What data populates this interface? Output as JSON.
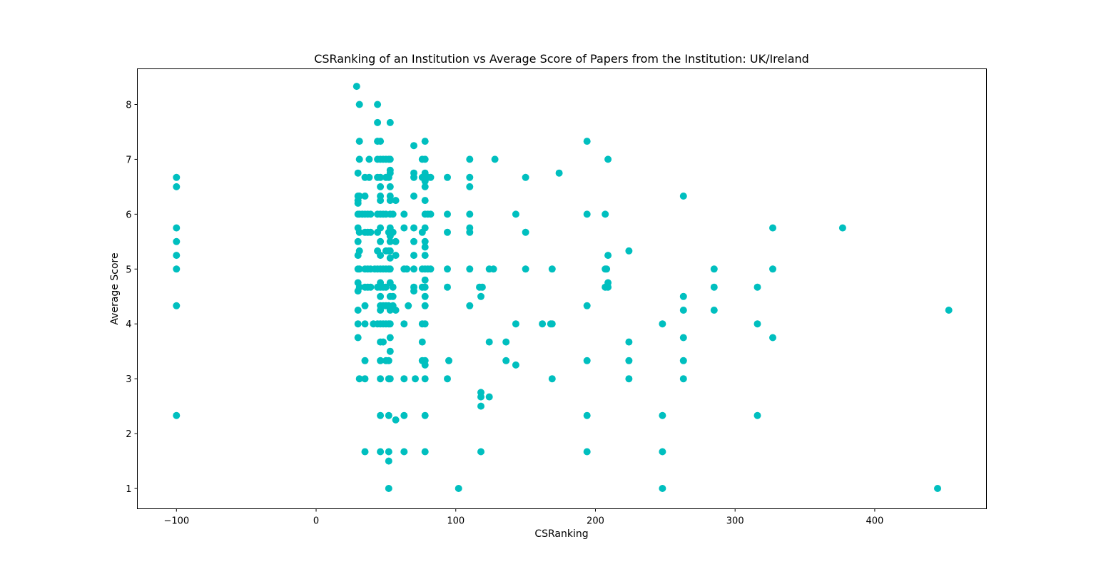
{
  "chart_data": {
    "type": "scatter",
    "title": "CSRanking of an Institution vs Average Score of Papers from the Institution: UK/Ireland",
    "xlabel": "CSRanking",
    "ylabel": "Average Score",
    "xlim": [
      -128,
      480
    ],
    "ylim": [
      0.63,
      8.65
    ],
    "xticks": [
      -100,
      0,
      100,
      200,
      300,
      400
    ],
    "xtick_labels": [
      "−100",
      "0",
      "100",
      "200",
      "300",
      "400"
    ],
    "yticks": [
      1,
      2,
      3,
      4,
      5,
      6,
      7,
      8
    ],
    "ytick_labels": [
      "1",
      "2",
      "3",
      "4",
      "5",
      "6",
      "7",
      "8"
    ],
    "grid": false,
    "marker_color": "#00bfbf",
    "points": [
      [
        -100,
        6.67
      ],
      [
        -100,
        6.5
      ],
      [
        -100,
        5.75
      ],
      [
        -100,
        5.5
      ],
      [
        -100,
        5.25
      ],
      [
        -100,
        5.0
      ],
      [
        -100,
        4.33
      ],
      [
        -100,
        2.33
      ],
      [
        29,
        8.33
      ],
      [
        30,
        6.75
      ],
      [
        30,
        6.33
      ],
      [
        30,
        6.25
      ],
      [
        30,
        6.2
      ],
      [
        30,
        6.0
      ],
      [
        30,
        5.75
      ],
      [
        30,
        5.5
      ],
      [
        30,
        5.25
      ],
      [
        30,
        5.0
      ],
      [
        30,
        4.75
      ],
      [
        30,
        4.6
      ],
      [
        30,
        4.25
      ],
      [
        30,
        4.0
      ],
      [
        30,
        3.75
      ],
      [
        31,
        8.0
      ],
      [
        31,
        7.33
      ],
      [
        31,
        7.0
      ],
      [
        31,
        6.33
      ],
      [
        31,
        6.0
      ],
      [
        31,
        5.67
      ],
      [
        31,
        5.33
      ],
      [
        31,
        5.0
      ],
      [
        31,
        4.67
      ],
      [
        31,
        3.0
      ],
      [
        33,
        6.0
      ],
      [
        35,
        6.67
      ],
      [
        35,
        6.33
      ],
      [
        35,
        6.0
      ],
      [
        35,
        5.67
      ],
      [
        35,
        5.0
      ],
      [
        35,
        4.67
      ],
      [
        35,
        4.33
      ],
      [
        35,
        4.0
      ],
      [
        35,
        3.33
      ],
      [
        35,
        3.0
      ],
      [
        35,
        1.67
      ],
      [
        37,
        6.0
      ],
      [
        37,
        5.67
      ],
      [
        37,
        5.0
      ],
      [
        37,
        4.67
      ],
      [
        38,
        7.0
      ],
      [
        38,
        6.67
      ],
      [
        39,
        6.0
      ],
      [
        39,
        5.67
      ],
      [
        39,
        5.0
      ],
      [
        39,
        4.67
      ],
      [
        41,
        4.0
      ],
      [
        42,
        5.0
      ],
      [
        44,
        8.0
      ],
      [
        44,
        7.67
      ],
      [
        44,
        7.33
      ],
      [
        44,
        7.0
      ],
      [
        44,
        6.67
      ],
      [
        44,
        6.0
      ],
      [
        44,
        5.67
      ],
      [
        44,
        5.33
      ],
      [
        44,
        5.0
      ],
      [
        44,
        4.67
      ],
      [
        44,
        4.0
      ],
      [
        46,
        7.33
      ],
      [
        46,
        7.0
      ],
      [
        46,
        6.67
      ],
      [
        46,
        6.5
      ],
      [
        46,
        6.33
      ],
      [
        46,
        6.25
      ],
      [
        46,
        6.0
      ],
      [
        46,
        5.75
      ],
      [
        46,
        5.5
      ],
      [
        46,
        5.25
      ],
      [
        46,
        5.0
      ],
      [
        46,
        4.75
      ],
      [
        46,
        4.67
      ],
      [
        46,
        4.5
      ],
      [
        46,
        4.33
      ],
      [
        46,
        4.25
      ],
      [
        46,
        4.0
      ],
      [
        46,
        3.67
      ],
      [
        46,
        3.33
      ],
      [
        46,
        3.0
      ],
      [
        46,
        2.33
      ],
      [
        46,
        1.67
      ],
      [
        48,
        7.0
      ],
      [
        48,
        6.0
      ],
      [
        48,
        5.0
      ],
      [
        48,
        4.67
      ],
      [
        48,
        4.33
      ],
      [
        48,
        4.0
      ],
      [
        48,
        3.67
      ],
      [
        50,
        7.0
      ],
      [
        50,
        6.67
      ],
      [
        50,
        6.0
      ],
      [
        50,
        5.33
      ],
      [
        50,
        5.0
      ],
      [
        50,
        4.67
      ],
      [
        50,
        4.33
      ],
      [
        50,
        4.0
      ],
      [
        50,
        3.33
      ],
      [
        52,
        7.0
      ],
      [
        52,
        6.67
      ],
      [
        52,
        5.67
      ],
      [
        52,
        5.33
      ],
      [
        52,
        5.0
      ],
      [
        52,
        4.33
      ],
      [
        52,
        4.0
      ],
      [
        52,
        3.33
      ],
      [
        52,
        3.0
      ],
      [
        52,
        2.33
      ],
      [
        52,
        1.67
      ],
      [
        52,
        1.5
      ],
      [
        52,
        1.0
      ],
      [
        53,
        7.67
      ],
      [
        53,
        7.0
      ],
      [
        53,
        6.8
      ],
      [
        53,
        6.75
      ],
      [
        53,
        6.5
      ],
      [
        53,
        6.33
      ],
      [
        53,
        6.25
      ],
      [
        53,
        6.0
      ],
      [
        53,
        5.75
      ],
      [
        53,
        5.67
      ],
      [
        53,
        5.6
      ],
      [
        53,
        5.5
      ],
      [
        53,
        5.33
      ],
      [
        53,
        5.2
      ],
      [
        53,
        5.0
      ],
      [
        53,
        4.75
      ],
      [
        53,
        4.5
      ],
      [
        53,
        4.25
      ],
      [
        53,
        4.0
      ],
      [
        53,
        3.75
      ],
      [
        53,
        3.5
      ],
      [
        53,
        3.0
      ],
      [
        55,
        6.0
      ],
      [
        55,
        5.67
      ],
      [
        55,
        4.67
      ],
      [
        55,
        4.5
      ],
      [
        55,
        4.33
      ],
      [
        57,
        6.25
      ],
      [
        57,
        5.5
      ],
      [
        57,
        5.25
      ],
      [
        57,
        4.25
      ],
      [
        57,
        2.25
      ],
      [
        63,
        6.0
      ],
      [
        63,
        5.75
      ],
      [
        63,
        5.0
      ],
      [
        63,
        4.0
      ],
      [
        63,
        3.0
      ],
      [
        63,
        2.33
      ],
      [
        63,
        1.67
      ],
      [
        65,
        5.0
      ],
      [
        66,
        4.33
      ],
      [
        70,
        7.25
      ],
      [
        70,
        6.75
      ],
      [
        70,
        6.67
      ],
      [
        70,
        6.33
      ],
      [
        70,
        5.75
      ],
      [
        70,
        5.5
      ],
      [
        70,
        5.25
      ],
      [
        70,
        5.0
      ],
      [
        70,
        4.67
      ],
      [
        70,
        4.6
      ],
      [
        71,
        3.0
      ],
      [
        76,
        7.0
      ],
      [
        76,
        6.67
      ],
      [
        76,
        5.67
      ],
      [
        76,
        5.0
      ],
      [
        76,
        4.67
      ],
      [
        76,
        4.0
      ],
      [
        76,
        3.67
      ],
      [
        76,
        3.33
      ],
      [
        78,
        7.33
      ],
      [
        78,
        7.0
      ],
      [
        78,
        6.75
      ],
      [
        78,
        6.6
      ],
      [
        78,
        6.5
      ],
      [
        78,
        6.25
      ],
      [
        78,
        6.0
      ],
      [
        78,
        5.75
      ],
      [
        78,
        5.5
      ],
      [
        78,
        5.4
      ],
      [
        78,
        5.25
      ],
      [
        78,
        5.0
      ],
      [
        78,
        4.8
      ],
      [
        78,
        4.67
      ],
      [
        78,
        4.5
      ],
      [
        78,
        4.33
      ],
      [
        78,
        4.0
      ],
      [
        78,
        3.33
      ],
      [
        78,
        3.25
      ],
      [
        78,
        3.0
      ],
      [
        78,
        2.33
      ],
      [
        78,
        1.67
      ],
      [
        80,
        6.67
      ],
      [
        80,
        6.0
      ],
      [
        80,
        5.0
      ],
      [
        82,
        6.67
      ],
      [
        82,
        6.0
      ],
      [
        82,
        5.0
      ],
      [
        94,
        6.67
      ],
      [
        94,
        6.0
      ],
      [
        94,
        5.67
      ],
      [
        94,
        5.0
      ],
      [
        94,
        4.67
      ],
      [
        94,
        3.0
      ],
      [
        95,
        3.33
      ],
      [
        102,
        1.0
      ],
      [
        110,
        7.0
      ],
      [
        110,
        6.67
      ],
      [
        110,
        6.5
      ],
      [
        110,
        6.0
      ],
      [
        110,
        5.75
      ],
      [
        110,
        5.67
      ],
      [
        110,
        5.0
      ],
      [
        110,
        4.33
      ],
      [
        117,
        4.67
      ],
      [
        118,
        4.5
      ],
      [
        118,
        2.75
      ],
      [
        118,
        2.67
      ],
      [
        118,
        2.5
      ],
      [
        118,
        1.67
      ],
      [
        119,
        4.67
      ],
      [
        124,
        5.0
      ],
      [
        124,
        3.67
      ],
      [
        124,
        2.67
      ],
      [
        127,
        5.0
      ],
      [
        128,
        7.0
      ],
      [
        136,
        3.67
      ],
      [
        136,
        3.33
      ],
      [
        143,
        6.0
      ],
      [
        143,
        4.0
      ],
      [
        143,
        3.25
      ],
      [
        150,
        6.67
      ],
      [
        150,
        5.67
      ],
      [
        150,
        5.0
      ],
      [
        162,
        4.0
      ],
      [
        168,
        4.0
      ],
      [
        169,
        5.0
      ],
      [
        169,
        4.0
      ],
      [
        169,
        3.0
      ],
      [
        174,
        6.75
      ],
      [
        194,
        7.33
      ],
      [
        194,
        6.0
      ],
      [
        194,
        4.33
      ],
      [
        194,
        3.33
      ],
      [
        194,
        2.33
      ],
      [
        194,
        1.67
      ],
      [
        207,
        6.0
      ],
      [
        207,
        5.0
      ],
      [
        207,
        4.67
      ],
      [
        208,
        5.0
      ],
      [
        209,
        7.0
      ],
      [
        209,
        5.25
      ],
      [
        209,
        4.75
      ],
      [
        209,
        4.67
      ],
      [
        224,
        5.33
      ],
      [
        224,
        3.67
      ],
      [
        224,
        3.33
      ],
      [
        224,
        3.0
      ],
      [
        248,
        4.0
      ],
      [
        248,
        2.33
      ],
      [
        248,
        1.67
      ],
      [
        248,
        1.0
      ],
      [
        263,
        6.33
      ],
      [
        263,
        4.5
      ],
      [
        263,
        4.25
      ],
      [
        263,
        3.75
      ],
      [
        263,
        3.33
      ],
      [
        263,
        3.0
      ],
      [
        285,
        5.0
      ],
      [
        285,
        4.67
      ],
      [
        285,
        4.25
      ],
      [
        316,
        4.67
      ],
      [
        316,
        4.0
      ],
      [
        316,
        2.33
      ],
      [
        327,
        5.75
      ],
      [
        327,
        5.0
      ],
      [
        327,
        3.75
      ],
      [
        377,
        5.75
      ],
      [
        445,
        1.0
      ],
      [
        453,
        4.25
      ]
    ]
  }
}
